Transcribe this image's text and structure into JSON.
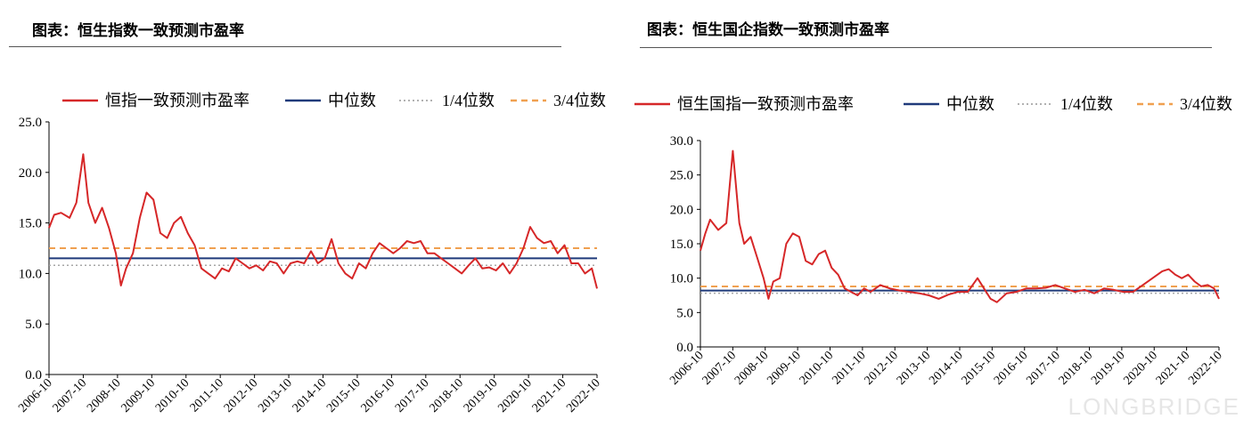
{
  "titles": {
    "left": "图表：恒生指数一致预测市盈率",
    "right": "图表：恒生国企指数一致预测市盈率"
  },
  "watermark": "LONGBRIDGE",
  "colors": {
    "pe": "#d62728",
    "median": "#1f3a7a",
    "q1": "#a6a6a6",
    "q3": "#f0a050"
  },
  "chart_data": [
    {
      "type": "line",
      "title": "",
      "legend": [
        "恒指一致预测市盈率",
        "中位数",
        "1/4位数",
        "3/4位数"
      ],
      "legend_placement": "top",
      "grid": false,
      "ylim": [
        0,
        25
      ],
      "yticks": [
        "0.0",
        "5.0",
        "10.0",
        "15.0",
        "20.0",
        "25.0"
      ],
      "xticks": [
        "2006-10",
        "2007-10",
        "2008-10",
        "2009-10",
        "2010-10",
        "2011-10",
        "2012-10",
        "2013-10",
        "2014-10",
        "2015-10",
        "2016-10",
        "2017-10",
        "2018-10",
        "2019-10",
        "2020-10",
        "2021-10",
        "2022-10"
      ],
      "series": [
        {
          "name": "恒指一致预测市盈率",
          "x": [
            2006.75,
            2006.9,
            2007.1,
            2007.35,
            2007.55,
            2007.75,
            2007.9,
            2008.1,
            2008.3,
            2008.5,
            2008.7,
            2008.85,
            2009.0,
            2009.2,
            2009.4,
            2009.6,
            2009.8,
            2010.0,
            2010.2,
            2010.4,
            2010.6,
            2010.8,
            2011.0,
            2011.2,
            2011.4,
            2011.6,
            2011.8,
            2012.0,
            2012.2,
            2012.4,
            2012.6,
            2012.8,
            2013.0,
            2013.2,
            2013.4,
            2013.6,
            2013.8,
            2014.0,
            2014.2,
            2014.4,
            2014.6,
            2014.8,
            2015.0,
            2015.2,
            2015.4,
            2015.6,
            2015.8,
            2016.0,
            2016.2,
            2016.4,
            2016.6,
            2016.8,
            2017.0,
            2017.2,
            2017.4,
            2017.6,
            2017.8,
            2018.0,
            2018.2,
            2018.4,
            2018.6,
            2018.8,
            2019.0,
            2019.2,
            2019.4,
            2019.6,
            2019.8,
            2020.0,
            2020.2,
            2020.4,
            2020.6,
            2020.8,
            2021.0,
            2021.2,
            2021.4,
            2021.6,
            2021.8,
            2022.0,
            2022.2,
            2022.4,
            2022.6,
            2022.75
          ],
          "y": [
            14.5,
            15.8,
            16.0,
            15.5,
            17.0,
            21.8,
            17.0,
            15.0,
            16.5,
            14.5,
            12.0,
            8.8,
            10.5,
            12.0,
            15.5,
            18.0,
            17.3,
            14.0,
            13.5,
            15.0,
            15.6,
            14.0,
            12.8,
            10.5,
            10.0,
            9.5,
            10.5,
            10.2,
            11.5,
            11.0,
            10.5,
            10.8,
            10.3,
            11.2,
            11.0,
            10.0,
            11.0,
            11.2,
            11.0,
            12.2,
            11.0,
            11.5,
            13.4,
            11.0,
            10.0,
            9.5,
            11.0,
            10.5,
            12.0,
            13.0,
            12.5,
            12.0,
            12.5,
            13.2,
            13.0,
            13.2,
            12.0,
            12.0,
            11.5,
            11.0,
            10.5,
            10.0,
            10.8,
            11.5,
            10.5,
            10.6,
            10.3,
            11.0,
            10.0,
            11.0,
            12.5,
            14.6,
            13.5,
            13.0,
            13.2,
            12.0,
            12.8,
            11.0,
            11.0,
            10.0,
            10.5,
            8.5
          ]
        },
        {
          "name": "中位数",
          "value": 11.5
        },
        {
          "name": "1/4位数",
          "value": 10.8
        },
        {
          "name": "3/4位数",
          "value": 12.5
        }
      ]
    },
    {
      "type": "line",
      "title": "",
      "legend": [
        "恒生国指一致预测市盈率",
        "中位数",
        "1/4位数",
        "3/4位数"
      ],
      "legend_placement": "top",
      "grid": false,
      "ylim": [
        0,
        30
      ],
      "yticks": [
        "0.0",
        "5.0",
        "10.0",
        "15.0",
        "20.0",
        "25.0",
        "30.0"
      ],
      "xticks": [
        "2006-10",
        "2007-10",
        "2008-10",
        "2009-10",
        "2010-10",
        "2011-10",
        "2012-10",
        "2013-10",
        "2014-10",
        "2015-10",
        "2016-10",
        "2017-10",
        "2018-10",
        "2019-10",
        "2020-10",
        "2021-10",
        "2022-10"
      ],
      "series": [
        {
          "name": "恒生国指一致预测市盈率",
          "x": [
            2006.75,
            2006.9,
            2007.05,
            2007.3,
            2007.55,
            2007.75,
            2007.95,
            2008.1,
            2008.3,
            2008.5,
            2008.7,
            2008.85,
            2009.0,
            2009.2,
            2009.4,
            2009.6,
            2009.8,
            2010.0,
            2010.2,
            2010.4,
            2010.6,
            2010.8,
            2011.0,
            2011.2,
            2011.4,
            2011.6,
            2011.8,
            2012.0,
            2012.3,
            2012.6,
            2012.9,
            2013.2,
            2013.5,
            2013.8,
            2014.1,
            2014.4,
            2014.7,
            2015.0,
            2015.3,
            2015.5,
            2015.7,
            2015.9,
            2016.2,
            2016.5,
            2016.8,
            2017.1,
            2017.4,
            2017.7,
            2018.0,
            2018.3,
            2018.6,
            2018.9,
            2019.2,
            2019.5,
            2019.8,
            2020.1,
            2020.4,
            2020.7,
            2021.0,
            2021.2,
            2021.4,
            2021.6,
            2021.8,
            2022.0,
            2022.2,
            2022.4,
            2022.6,
            2022.75
          ],
          "y": [
            14.0,
            16.5,
            18.5,
            17.0,
            18.0,
            28.5,
            18.0,
            15.0,
            16.0,
            13.0,
            10.0,
            7.0,
            9.5,
            10.0,
            15.0,
            16.5,
            16.0,
            12.5,
            12.0,
            13.5,
            14.0,
            11.5,
            10.5,
            8.5,
            8.0,
            7.5,
            8.5,
            8.0,
            9.0,
            8.5,
            8.2,
            8.0,
            7.8,
            7.5,
            7.0,
            7.6,
            8.0,
            8.0,
            10.0,
            8.5,
            7.0,
            6.5,
            7.8,
            8.0,
            8.5,
            8.5,
            8.6,
            9.0,
            8.5,
            8.0,
            8.3,
            7.8,
            8.5,
            8.3,
            8.0,
            8.0,
            9.0,
            10.0,
            11.0,
            11.3,
            10.5,
            10.0,
            10.5,
            9.5,
            8.8,
            9.0,
            8.5,
            7.0
          ]
        },
        {
          "name": "中位数",
          "value": 8.2
        },
        {
          "name": "1/4位数",
          "value": 7.8
        },
        {
          "name": "3/4位数",
          "value": 8.8
        }
      ]
    }
  ]
}
